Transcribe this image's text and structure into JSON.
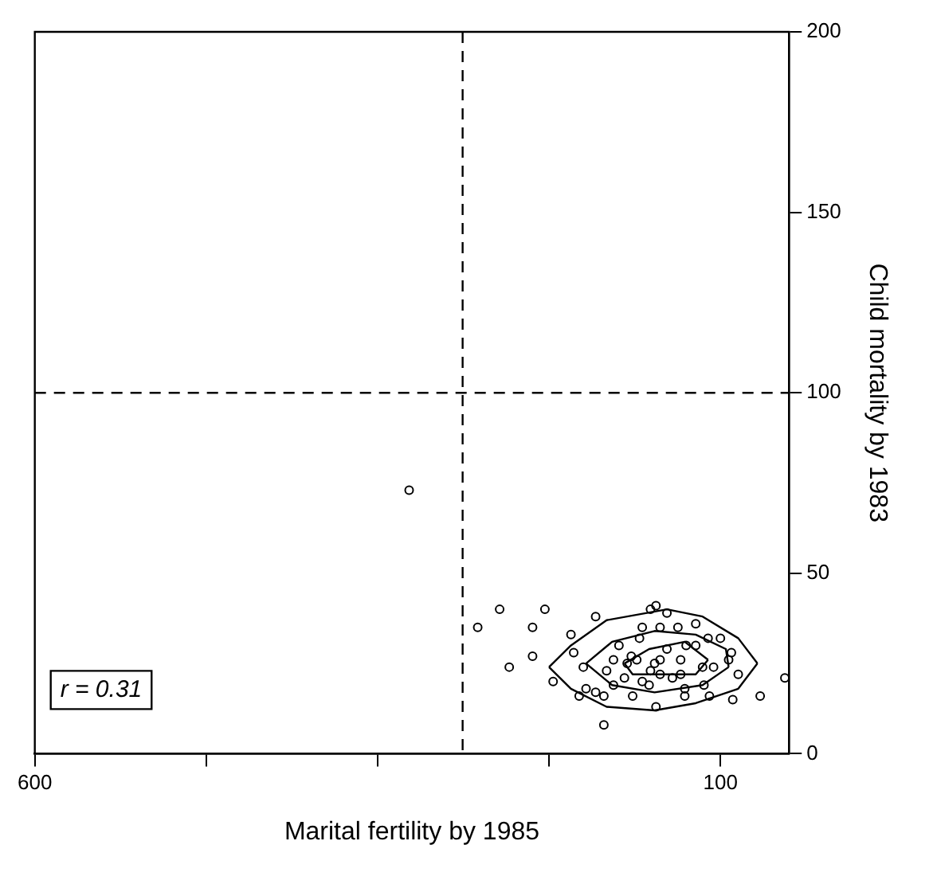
{
  "chart_data": {
    "type": "scatter",
    "xlabel": "Marital fertility by 1985",
    "ylabel": "Child mortality by 1983",
    "xlim": [
      600,
      50
    ],
    "xticks": [
      600,
      {
        "value": 475,
        "label": null
      },
      {
        "value": 350,
        "label": null
      },
      {
        "value": 225,
        "label": null
      },
      100
    ],
    "ylim": [
      0,
      200
    ],
    "yticks": [
      0,
      50,
      100,
      150,
      200
    ],
    "grid": false,
    "legend": false,
    "marker": "circle",
    "annotations": [
      "r = 0.31"
    ],
    "ref_lines": [
      {
        "axis": "x",
        "value": 288,
        "line_style": "dashed",
        "color": "#000000"
      },
      {
        "axis": "y",
        "value": 100,
        "line_style": "dashed",
        "color": "#000000"
      }
    ],
    "series": [
      {
        "color": "#000000",
        "x": [
          327,
          261,
          228,
          277,
          237,
          254,
          237,
          222,
          209,
          191,
          185,
          147,
          151,
          139,
          118,
          87,
          71,
          91,
          108,
          126,
          147,
          164,
          185,
          203,
          198,
          191,
          178,
          157,
          152,
          178,
          165,
          161,
          168,
          148,
          144,
          139,
          129,
          125,
          118,
          109,
          100,
          94,
          92,
          105,
          113,
          129,
          135,
          144,
          157,
          144,
          131,
          159,
          174,
          200,
          207,
          183,
          170,
          126,
          112,
          151,
          53
        ],
        "values": [
          73,
          40,
          40,
          35,
          35,
          24,
          27,
          20,
          33,
          38,
          8,
          41,
          40,
          39,
          36,
          22,
          16,
          15,
          16,
          16,
          13,
          16,
          16,
          16,
          18,
          17,
          19,
          20,
          19,
          26,
          27,
          26,
          25,
          25,
          26,
          29,
          26,
          30,
          30,
          32,
          32,
          26,
          28,
          24,
          24,
          22,
          21,
          22,
          35,
          35,
          35,
          32,
          30,
          24,
          28,
          23,
          21,
          18,
          19,
          23,
          21
        ]
      },
      {
        "type": "line",
        "color": "#000000",
        "marker": "none",
        "x": [
          73,
          87,
          113,
          139,
          183,
          209,
          225
        ],
        "values": [
          25,
          32,
          38,
          40,
          37,
          30,
          24
        ]
      },
      {
        "type": "line",
        "color": "#000000",
        "marker": "none",
        "x": [
          73,
          87,
          118,
          148,
          183,
          209,
          225
        ],
        "values": [
          25,
          18,
          14,
          12,
          13,
          18,
          24
        ]
      },
      {
        "type": "line",
        "color": "#000000",
        "marker": "none",
        "x": [
          94,
          96,
          118,
          148,
          179,
          198
        ],
        "values": [
          24,
          29,
          33,
          34,
          31,
          25
        ]
      },
      {
        "type": "line",
        "color": "#000000",
        "marker": "none",
        "x": [
          94,
          113,
          148,
          179,
          198
        ],
        "values": [
          24,
          19,
          17,
          19,
          25
        ]
      },
      {
        "type": "line",
        "color": "#000000",
        "marker": "none",
        "x": [
          109,
          126,
          152,
          170
        ],
        "values": [
          26,
          31,
          29,
          25
        ]
      },
      {
        "type": "line",
        "color": "#000000",
        "marker": "none",
        "x": [
          109,
          118,
          144,
          164,
          170
        ],
        "values": [
          26,
          22,
          22,
          22,
          25
        ]
      }
    ]
  }
}
